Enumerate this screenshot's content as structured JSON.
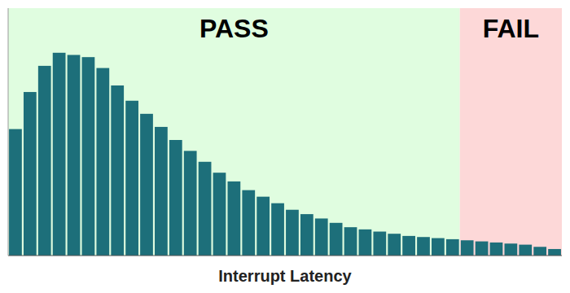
{
  "chart_data": {
    "type": "bar",
    "x_label": "Interrupt Latency",
    "categories": [
      null,
      null,
      null,
      null,
      null,
      null,
      null,
      null,
      null,
      null,
      null,
      null,
      null,
      null,
      null,
      null,
      null,
      null,
      null,
      null,
      null,
      null,
      null,
      null,
      null,
      null,
      null,
      null,
      null,
      null,
      null,
      null,
      null,
      null,
      null,
      null,
      null,
      null
    ],
    "values": [
      58,
      75,
      87,
      93,
      92,
      91,
      86,
      78,
      71,
      65,
      59,
      53,
      48,
      43,
      38,
      34,
      30,
      27,
      24,
      21,
      19,
      17,
      15,
      13,
      12,
      11,
      10,
      9,
      8.5,
      8,
      7.5,
      7,
      6.5,
      6,
      5.5,
      5,
      4,
      3
    ],
    "color": "#1d6f7a",
    "ylim": [
      0,
      113.46
    ],
    "yticks": [],
    "tick_labels": false,
    "grid": false,
    "annotations": [
      {
        "text": "PASS",
        "color": "#e0fde0",
        "from": 0,
        "to": 30
      },
      {
        "text": "FAIL",
        "color": "#fdd8d8",
        "from": 31,
        "to": 37
      }
    ]
  }
}
